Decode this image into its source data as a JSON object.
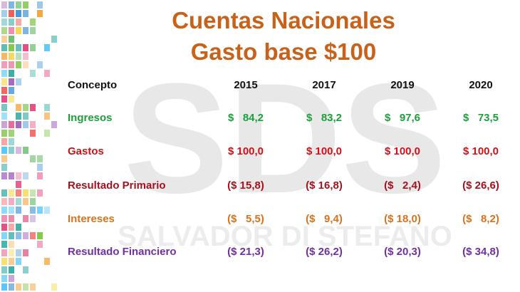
{
  "title": {
    "lines": [
      "Cuentas Nacionales",
      "Gasto base $100"
    ],
    "color": "#c8621a"
  },
  "watermark": {
    "logo": "SDS",
    "name": "SALVADOR DI STEFANO"
  },
  "table": {
    "header": [
      "Concepto",
      "2015",
      "2017",
      "2019",
      "2020"
    ],
    "rows": [
      {
        "cells": [
          "Ingresos",
          "$   84,2",
          "$   83,2",
          "$   97,6",
          "$   73,5"
        ],
        "color": "#1f9e3c"
      },
      {
        "cells": [
          "Gastos",
          "$ 100,0",
          "$ 100,0",
          "$ 100,0",
          "$ 100,0"
        ],
        "color": "#d0101a"
      },
      {
        "cells": [
          "Resultado Primario",
          "($ 15,8)",
          "($ 16,8)",
          "($   2,4)",
          "($ 26,6)"
        ],
        "color": "#a8101e"
      },
      {
        "cells": [
          "Intereses",
          "($   5,5)",
          "($   9,4)",
          "($ 18,0)",
          "($   8,2)"
        ],
        "color": "#d8721c"
      },
      {
        "cells": [
          "Resultado Financiero",
          "($ 21,3)",
          "($ 26,2)",
          "($ 20,3)",
          "($ 34,8)"
        ],
        "color": "#7030a0"
      }
    ]
  }
}
